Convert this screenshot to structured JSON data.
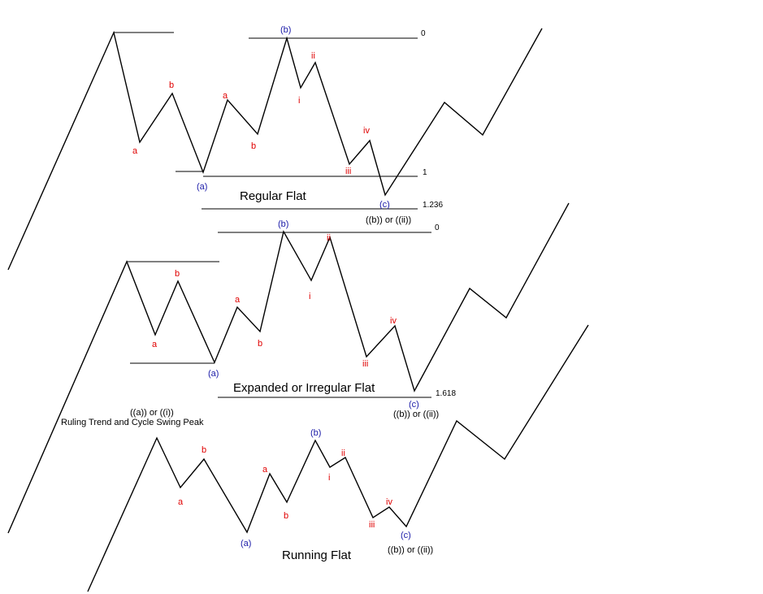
{
  "titles": {
    "regular": "Regular Flat",
    "expanded": "Expanded or Irregular Flat",
    "running": "Running Flat"
  },
  "notes": {
    "peak_degree": "((a)) or ((i))",
    "peak_desc": "Ruling Trend and Cycle Swing Peak",
    "end_regular": "((b)) or ((ii))",
    "end_expanded": "((b)) or ((ii))",
    "end_running": "((b)) or ((ii))"
  },
  "fib": {
    "regular_zero": "0",
    "regular_one": "1",
    "regular_1236": "1.236",
    "expanded_zero": "0",
    "expanded_1618": "1.618"
  },
  "labels": {
    "regular": {
      "a1": "a",
      "b1": "b",
      "A": "(a)",
      "a2": "a",
      "b2": "b",
      "B": "(b)",
      "i": "i",
      "ii": "ii",
      "iii": "iii",
      "iv": "iv",
      "C": "(c)"
    },
    "expanded": {
      "a1": "a",
      "b1": "b",
      "A": "(a)",
      "a2": "a",
      "b2": "b",
      "B": "(b)",
      "i": "i",
      "ii": "ii",
      "iii": "iii",
      "iv": "iv",
      "C": "(c)"
    },
    "running": {
      "a1": "a",
      "b1": "b",
      "A": "(a)",
      "a2": "a",
      "b2": "b",
      "B": "(b)",
      "i": "i",
      "ii": "ii",
      "iii": "iii",
      "iv": "iv",
      "C": "(c)"
    }
  },
  "colors": {
    "subwave": "#e00000",
    "wave": "#1a1aa8",
    "line": "#000000"
  }
}
